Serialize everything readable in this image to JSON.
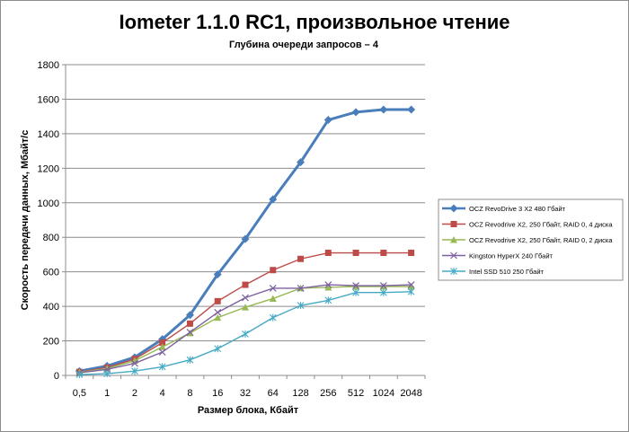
{
  "chart_data": {
    "type": "line",
    "title": "Iometer 1.1.0 RC1, произвольное чтение",
    "subtitle": "Глубина очереди запросов – 4",
    "xlabel": "Размер блока, Кбайт",
    "ylabel": "Скорость передачи данных, Мбайт/с",
    "categories": [
      "0,5",
      "1",
      "2",
      "4",
      "8",
      "16",
      "32",
      "64",
      "128",
      "256",
      "512",
      "1024",
      "2048"
    ],
    "ylim": [
      0,
      1800
    ],
    "yticks": [
      0,
      200,
      400,
      600,
      800,
      1000,
      1200,
      1400,
      1600,
      1800
    ],
    "grid": true,
    "legend_position": "right",
    "series": [
      {
        "name": "OCZ RevoDrive 3 X2 480 Гбайт",
        "color": "#4a7ebb",
        "marker": "diamond",
        "values": [
          25,
          55,
          105,
          210,
          350,
          585,
          790,
          1020,
          1235,
          1480,
          1525,
          1540,
          1540
        ]
      },
      {
        "name": "OCZ Revodrive X2, 250 Гбайт, RAID 0, 4 диска",
        "color": "#be4b48",
        "marker": "square",
        "values": [
          20,
          45,
          95,
          190,
          300,
          430,
          525,
          610,
          675,
          710,
          710,
          710,
          710
        ]
      },
      {
        "name": "OCZ Revodrive X2, 250 Гбайт, RAID 0, 2 диска",
        "color": "#98b954",
        "marker": "triangle",
        "values": [
          18,
          40,
          85,
          165,
          245,
          335,
          395,
          445,
          505,
          510,
          515,
          515,
          515
        ]
      },
      {
        "name": "Kingston HyperX 240 Гбайт",
        "color": "#7d60a0",
        "marker": "x",
        "values": [
          15,
          35,
          70,
          135,
          250,
          365,
          450,
          505,
          505,
          525,
          520,
          520,
          525
        ]
      },
      {
        "name": "Intel SSD 510 250 Гбайт",
        "color": "#46aac5",
        "marker": "asterisk",
        "values": [
          5,
          10,
          25,
          50,
          90,
          155,
          240,
          335,
          405,
          435,
          480,
          480,
          485
        ]
      }
    ]
  }
}
